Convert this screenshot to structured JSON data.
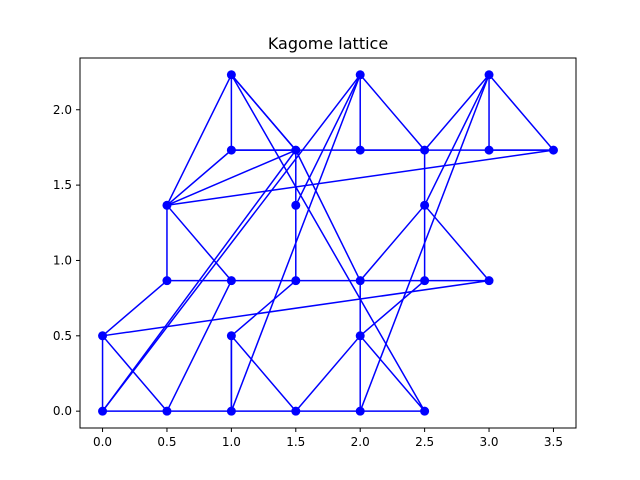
{
  "chart_data": {
    "type": "line",
    "title": "Kagome lattice",
    "xlabel": "",
    "ylabel": "",
    "xlim": [
      -0.175,
      3.675
    ],
    "ylim": [
      -0.1117,
      2.3434
    ],
    "xticks": [
      0.0,
      0.5,
      1.0,
      1.5,
      2.0,
      2.5,
      3.0,
      3.5
    ],
    "xtick_labels": [
      "0.0",
      "0.5",
      "1.0",
      "1.5",
      "2.0",
      "2.5",
      "3.0",
      "3.5"
    ],
    "yticks": [
      0.0,
      0.5,
      1.0,
      1.5,
      2.0
    ],
    "ytick_labels": [
      "0.0",
      "0.5",
      "1.0",
      "1.5",
      "2.0"
    ],
    "grid": false,
    "color": "#0000ff",
    "marker": "circle",
    "series": [
      {
        "points": [
          [
            0.0,
            0.0
          ],
          [
            0.5,
            0.0
          ],
          [
            0.0,
            0.5
          ],
          [
            0.0,
            0.0
          ],
          [
            2.0,
            2.2321
          ],
          [
            2.0,
            1.7321
          ],
          [
            2.5,
            1.7321
          ],
          [
            2.0,
            2.2321
          ],
          [
            0.0,
            0.0
          ]
        ]
      },
      {
        "points": [
          [
            0.5,
            0.0
          ],
          [
            1.0,
            0.0
          ],
          [
            1.5,
            0.0
          ],
          [
            2.0,
            0.0
          ],
          [
            2.5,
            0.0
          ]
        ]
      },
      {
        "points": [
          [
            0.0,
            0.5
          ],
          [
            0.5,
            0.866
          ],
          [
            1.0,
            0.866
          ],
          [
            1.5,
            0.866
          ],
          [
            2.0,
            0.866
          ],
          [
            2.5,
            0.866
          ],
          [
            3.0,
            0.866
          ],
          [
            0.0,
            0.5
          ]
        ]
      },
      {
        "points": [
          [
            0.5,
            0.866
          ],
          [
            0.5,
            1.366
          ],
          [
            1.0,
            1.7321
          ],
          [
            1.5,
            1.7321
          ],
          [
            2.0,
            1.7321
          ],
          [
            2.5,
            1.7321
          ],
          [
            3.0,
            1.7321
          ],
          [
            3.5,
            1.7321
          ],
          [
            0.5,
            1.366
          ]
        ]
      },
      {
        "points": [
          [
            0.5,
            0.0
          ],
          [
            1.0,
            0.866
          ],
          [
            0.5,
            1.366
          ],
          [
            1.0,
            2.2321
          ],
          [
            1.0,
            1.7321
          ],
          [
            1.5,
            1.7321
          ],
          [
            1.0,
            2.2321
          ]
        ]
      },
      {
        "points": [
          [
            1.0,
            0.0
          ],
          [
            1.0,
            0.5
          ],
          [
            1.5,
            0.0
          ]
        ]
      },
      {
        "points": [
          [
            1.0,
            0.5
          ],
          [
            1.0,
            0.0
          ]
        ]
      },
      {
        "points": [
          [
            1.0,
            0.5
          ],
          [
            1.5,
            0.866
          ],
          [
            1.5,
            1.366
          ],
          [
            1.5,
            1.7321
          ],
          [
            1.5,
            1.366
          ],
          [
            2.0,
            2.2321
          ]
        ]
      },
      {
        "points": [
          [
            1.0,
            0.0
          ],
          [
            2.0,
            2.2321
          ]
        ]
      },
      {
        "points": [
          [
            1.5,
            1.7321
          ],
          [
            1.0,
            2.2321
          ],
          [
            2.5,
            0.0
          ],
          [
            2.0,
            0.5
          ],
          [
            2.0,
            0.0
          ],
          [
            2.0,
            0.866
          ],
          [
            2.5,
            1.366
          ],
          [
            2.5,
            1.7321
          ],
          [
            3.0,
            2.2321
          ],
          [
            3.0,
            1.7321
          ],
          [
            3.5,
            1.7321
          ],
          [
            3.0,
            2.2321
          ],
          [
            2.5,
            1.366
          ]
        ]
      },
      {
        "points": [
          [
            2.0,
            0.5
          ],
          [
            2.5,
            0.866
          ],
          [
            2.5,
            1.366
          ],
          [
            3.0,
            0.866
          ]
        ]
      },
      {
        "points": [
          [
            2.0,
            0.0
          ],
          [
            3.0,
            2.2321
          ]
        ]
      },
      {
        "points": [
          [
            1.5,
            0.0
          ],
          [
            2.0,
            0.5
          ]
        ]
      },
      {
        "points": [
          [
            2.0,
            0.866
          ],
          [
            1.5,
            1.7321
          ]
        ]
      },
      {
        "points": [
          [
            0.5,
            1.366
          ],
          [
            1.5,
            1.7321
          ]
        ]
      },
      {
        "points": [
          [
            0.0,
            0.0
          ],
          [
            1.5,
            1.7321
          ]
        ]
      }
    ]
  }
}
